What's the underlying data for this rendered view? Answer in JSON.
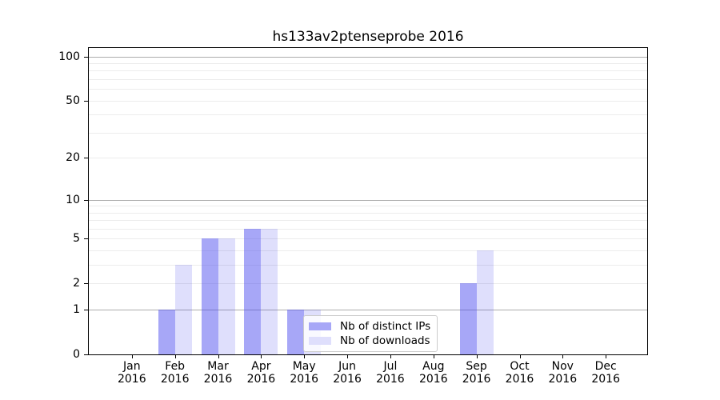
{
  "chart_data": {
    "type": "bar",
    "title": "hs133av2ptenseprobe 2016",
    "categories": [
      "Jan 2016",
      "Feb 2016",
      "Mar 2016",
      "Apr 2016",
      "May 2016",
      "Jun 2016",
      "Jul 2016",
      "Aug 2016",
      "Sep 2016",
      "Oct 2016",
      "Nov 2016",
      "Dec 2016"
    ],
    "series": [
      {
        "name": "Nb of distinct IPs",
        "values": [
          0,
          1,
          5,
          6,
          1,
          0,
          0,
          0,
          2,
          0,
          0,
          0
        ],
        "bar_color": "rgba(80, 80, 240, 0.50)",
        "legend_color": "#a7a7f7"
      },
      {
        "name": "Nb of downloads",
        "values": [
          0,
          3,
          5,
          6,
          1,
          0,
          0,
          0,
          4,
          0,
          0,
          0
        ],
        "bar_color": "rgba(80, 80, 240, 0.18)",
        "legend_color": "#dfdffc"
      }
    ],
    "xlabel": "",
    "ylabel": "",
    "yscale": "log1p",
    "ylim": [
      0,
      117
    ],
    "yticks": [
      0,
      1,
      2,
      5,
      10,
      20,
      50,
      100
    ],
    "grid": {
      "major_values": [
        1,
        10,
        100
      ],
      "minor_values": [
        2,
        3,
        4,
        5,
        6,
        7,
        8,
        9,
        20,
        30,
        40,
        50,
        60,
        70,
        80,
        90
      ],
      "major_color": "#ababab",
      "minor_color": "#ebebeb"
    },
    "legend_position": "lower center"
  },
  "colors": {
    "background": "#ffffff",
    "spine": "#000000",
    "text": "#000000",
    "legend_border": "#cccccc",
    "bar_primary": "#a7a7f7",
    "bar_secondary": "#dfdffc"
  }
}
